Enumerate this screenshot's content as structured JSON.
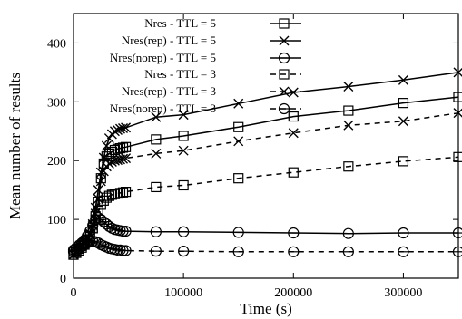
{
  "chart_data": {
    "type": "line",
    "title": "",
    "xlabel": "Time (s)",
    "ylabel": "Mean number of results",
    "xlim": [
      0,
      350000
    ],
    "ylim": [
      0,
      450
    ],
    "x_ticks": [
      0,
      100000,
      200000,
      300000
    ],
    "y_ticks": [
      0,
      100,
      200,
      300,
      400
    ],
    "grid": false,
    "legend_position": "top-right",
    "series": [
      {
        "name": "Nres - TTL = 5",
        "marker": "square",
        "dashed": false,
        "points": [
          [
            0,
            40
          ],
          [
            2500,
            45
          ],
          [
            5000,
            50
          ],
          [
            7500,
            55
          ],
          [
            10000,
            60
          ],
          [
            12500,
            65
          ],
          [
            15000,
            72
          ],
          [
            17500,
            85
          ],
          [
            20000,
            105
          ],
          [
            22500,
            130
          ],
          [
            25000,
            170
          ],
          [
            27500,
            195
          ],
          [
            30000,
            207
          ],
          [
            32500,
            212
          ],
          [
            35000,
            215
          ],
          [
            37500,
            218
          ],
          [
            40000,
            220
          ],
          [
            42500,
            221
          ],
          [
            45000,
            222
          ],
          [
            47500,
            223
          ],
          [
            75000,
            236
          ],
          [
            100000,
            242
          ],
          [
            150000,
            257
          ],
          [
            200000,
            275
          ],
          [
            250000,
            285
          ],
          [
            300000,
            298
          ],
          [
            350000,
            308
          ]
        ]
      },
      {
        "name": "Nres(rep) - TTL = 5",
        "marker": "x",
        "dashed": false,
        "points": [
          [
            0,
            40
          ],
          [
            2500,
            46
          ],
          [
            5000,
            52
          ],
          [
            7500,
            57
          ],
          [
            10000,
            62
          ],
          [
            12500,
            68
          ],
          [
            15000,
            76
          ],
          [
            17500,
            92
          ],
          [
            20000,
            120
          ],
          [
            22500,
            150
          ],
          [
            25000,
            180
          ],
          [
            27500,
            205
          ],
          [
            30000,
            225
          ],
          [
            32500,
            238
          ],
          [
            35000,
            245
          ],
          [
            37500,
            250
          ],
          [
            40000,
            252
          ],
          [
            42500,
            254
          ],
          [
            45000,
            255
          ],
          [
            47500,
            256
          ],
          [
            75000,
            274
          ],
          [
            100000,
            278
          ],
          [
            150000,
            297
          ],
          [
            200000,
            316
          ],
          [
            250000,
            326
          ],
          [
            300000,
            337
          ],
          [
            350000,
            350
          ]
        ]
      },
      {
        "name": "Nres(norep) - TTL = 5",
        "marker": "circle",
        "dashed": false,
        "points": [
          [
            0,
            48
          ],
          [
            2500,
            52
          ],
          [
            5000,
            56
          ],
          [
            7500,
            60
          ],
          [
            10000,
            65
          ],
          [
            12500,
            72
          ],
          [
            15000,
            80
          ],
          [
            17500,
            90
          ],
          [
            20000,
            100
          ],
          [
            22500,
            103
          ],
          [
            25000,
            100
          ],
          [
            27500,
            96
          ],
          [
            30000,
            92
          ],
          [
            32500,
            88
          ],
          [
            35000,
            85
          ],
          [
            37500,
            83
          ],
          [
            40000,
            82
          ],
          [
            42500,
            81
          ],
          [
            45000,
            80
          ],
          [
            47500,
            80
          ],
          [
            75000,
            79
          ],
          [
            100000,
            79
          ],
          [
            150000,
            78
          ],
          [
            200000,
            77
          ],
          [
            250000,
            76
          ],
          [
            300000,
            77
          ],
          [
            350000,
            77
          ]
        ]
      },
      {
        "name": "Nres - TTL = 3",
        "marker": "square",
        "dashed": true,
        "points": [
          [
            0,
            40
          ],
          [
            2500,
            43
          ],
          [
            5000,
            47
          ],
          [
            7500,
            52
          ],
          [
            10000,
            57
          ],
          [
            12500,
            62
          ],
          [
            15000,
            70
          ],
          [
            17500,
            85
          ],
          [
            20000,
            100
          ],
          [
            22500,
            115
          ],
          [
            25000,
            125
          ],
          [
            27500,
            132
          ],
          [
            30000,
            137
          ],
          [
            32500,
            140
          ],
          [
            35000,
            142
          ],
          [
            37500,
            143
          ],
          [
            40000,
            144
          ],
          [
            42500,
            145
          ],
          [
            45000,
            146
          ],
          [
            47500,
            147
          ],
          [
            75000,
            155
          ],
          [
            100000,
            158
          ],
          [
            150000,
            170
          ],
          [
            200000,
            180
          ],
          [
            250000,
            190
          ],
          [
            300000,
            199
          ],
          [
            350000,
            206
          ]
        ]
      },
      {
        "name": "Nres(rep) - TTL = 3",
        "marker": "x",
        "dashed": true,
        "points": [
          [
            0,
            40
          ],
          [
            2500,
            45
          ],
          [
            5000,
            51
          ],
          [
            7500,
            56
          ],
          [
            10000,
            61
          ],
          [
            12500,
            67
          ],
          [
            15000,
            75
          ],
          [
            17500,
            90
          ],
          [
            20000,
            110
          ],
          [
            22500,
            135
          ],
          [
            25000,
            165
          ],
          [
            27500,
            182
          ],
          [
            30000,
            190
          ],
          [
            32500,
            195
          ],
          [
            35000,
            198
          ],
          [
            37500,
            200
          ],
          [
            40000,
            201
          ],
          [
            42500,
            202
          ],
          [
            45000,
            203
          ],
          [
            47500,
            204
          ],
          [
            75000,
            212
          ],
          [
            100000,
            217
          ],
          [
            150000,
            233
          ],
          [
            200000,
            247
          ],
          [
            250000,
            260
          ],
          [
            300000,
            267
          ],
          [
            350000,
            281
          ]
        ]
      },
      {
        "name": "Nres(norep) - TTL = 3",
        "marker": "circle",
        "dashed": true,
        "points": [
          [
            0,
            45
          ],
          [
            2500,
            48
          ],
          [
            5000,
            51
          ],
          [
            7500,
            54
          ],
          [
            10000,
            57
          ],
          [
            12500,
            60
          ],
          [
            15000,
            62
          ],
          [
            17500,
            63
          ],
          [
            20000,
            62
          ],
          [
            22500,
            60
          ],
          [
            25000,
            57
          ],
          [
            27500,
            55
          ],
          [
            30000,
            53
          ],
          [
            32500,
            51
          ],
          [
            35000,
            50
          ],
          [
            37500,
            49
          ],
          [
            40000,
            48
          ],
          [
            42500,
            48
          ],
          [
            45000,
            47
          ],
          [
            47500,
            47
          ],
          [
            75000,
            46
          ],
          [
            100000,
            46
          ],
          [
            150000,
            45
          ],
          [
            200000,
            45
          ],
          [
            250000,
            45
          ],
          [
            300000,
            45
          ],
          [
            350000,
            45
          ]
        ]
      }
    ]
  }
}
